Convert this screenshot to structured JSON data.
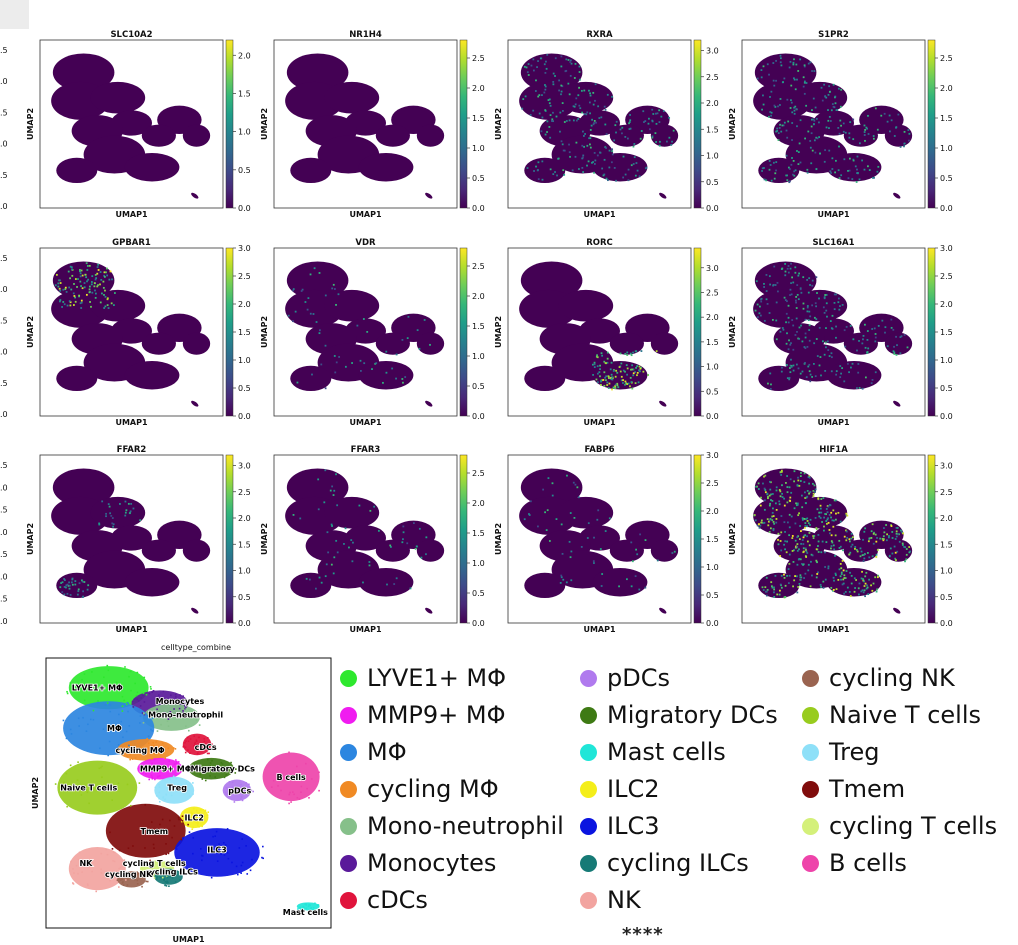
{
  "panels": [
    {
      "title": "SLC10A2",
      "ticks": [
        "2.0",
        "1.5",
        "1.0",
        "0.5",
        "0.0"
      ],
      "max": 2.2,
      "pattern": "none"
    },
    {
      "title": "NR1H4",
      "ticks": [
        "2.5",
        "2.0",
        "1.5",
        "1.0",
        "0.5",
        "0.0"
      ],
      "max": 2.8,
      "pattern": "none"
    },
    {
      "title": "RXRA",
      "ticks": [
        "3.0",
        "2.5",
        "2.0",
        "1.5",
        "1.0",
        "0.5",
        "0.0"
      ],
      "max": 3.2,
      "pattern": "medium"
    },
    {
      "title": "S1PR2",
      "ticks": [
        "2.5",
        "2.0",
        "1.5",
        "1.0",
        "0.5",
        "0.0"
      ],
      "max": 2.8,
      "pattern": "medium"
    },
    {
      "title": "GPBAR1",
      "ticks": [
        "3.0",
        "2.5",
        "2.0",
        "1.5",
        "1.0",
        "0.5",
        "0.0"
      ],
      "max": 3.0,
      "pattern": "topleft"
    },
    {
      "title": "VDR",
      "ticks": [
        "2.5",
        "2.0",
        "1.5",
        "1.0",
        "0.5",
        "0.0"
      ],
      "max": 2.8,
      "pattern": "sparse"
    },
    {
      "title": "RORC",
      "ticks": [
        "3.0",
        "2.5",
        "2.0",
        "1.5",
        "1.0",
        "0.5",
        "0.0"
      ],
      "max": 3.4,
      "pattern": "lowerright"
    },
    {
      "title": "SLC16A1",
      "ticks": [
        "3.0",
        "2.5",
        "2.0",
        "1.5",
        "1.0",
        "0.5",
        "0.0"
      ],
      "max": 3.0,
      "pattern": "medium"
    },
    {
      "title": "FFAR2",
      "ticks": [
        "3.0",
        "2.5",
        "2.0",
        "1.5",
        "1.0",
        "0.5",
        "0.0"
      ],
      "max": 3.2,
      "pattern": "lowerleft"
    },
    {
      "title": "FFAR3",
      "ticks": [
        "2.5",
        "2.0",
        "1.5",
        "1.0",
        "0.5",
        "0.0"
      ],
      "max": 2.8,
      "pattern": "sparse"
    },
    {
      "title": "FABP6",
      "ticks": [
        "3.0",
        "2.5",
        "2.0",
        "1.5",
        "1.0",
        "0.5",
        "0.0"
      ],
      "max": 3.0,
      "pattern": "sparse"
    },
    {
      "title": "HIF1A",
      "ticks": [
        "3.0",
        "2.5",
        "2.0",
        "1.5",
        "1.0",
        "0.5",
        "0.0"
      ],
      "max": 3.2,
      "pattern": "high"
    }
  ],
  "left_edge_ticks": [
    [
      ".5",
      ".0",
      ".5",
      ".0",
      ".5",
      ".0"
    ],
    [
      ".5",
      ".0",
      ".5",
      ".0",
      ".5",
      ".0"
    ],
    [
      ".5",
      ".0",
      ".5",
      ".0",
      ".5",
      ".0",
      ".5",
      ".0"
    ]
  ],
  "xlabel": "UMAP1",
  "ylabel": "UMAP2",
  "celltype": {
    "title": "celltype_combine",
    "xlabel": "UMAP1",
    "ylabel": "UMAP2",
    "cluster_labels": [
      "LYVE1+ MΦ",
      "Monocytes",
      "Mono-neutrophil",
      "MΦ",
      "cycling MΦ",
      "cDCs",
      "MMP9+ MΦ",
      "Migratory DCs",
      "B cells",
      "Naive T cells",
      "Treg",
      "pDCs",
      "ILC2",
      "Tmem",
      "ILC3",
      "NK",
      "cycling T cells",
      "cycling ILCs",
      "cycling NK",
      "Mast cells"
    ]
  },
  "legend": [
    {
      "label": "LYVE1+ MΦ",
      "color": "#2ee82e"
    },
    {
      "label": "MMP9+ MΦ",
      "color": "#f01cf0"
    },
    {
      "label": "MΦ",
      "color": "#2c86e0"
    },
    {
      "label": "cycling MΦ",
      "color": "#f08a24"
    },
    {
      "label": "Mono-neutrophil",
      "color": "#86c08a"
    },
    {
      "label": "Monocytes",
      "color": "#5a1a9a"
    },
    {
      "label": "cDCs",
      "color": "#e0143c"
    },
    {
      "label": "pDCs",
      "color": "#b07aee"
    },
    {
      "label": "Migratory DCs",
      "color": "#3e7a14"
    },
    {
      "label": "Mast cells",
      "color": "#20e6d8"
    },
    {
      "label": "ILC2",
      "color": "#f4ee1a"
    },
    {
      "label": "ILC3",
      "color": "#0a14e0"
    },
    {
      "label": "cycling ILCs",
      "color": "#167a76"
    },
    {
      "label": "NK",
      "color": "#f2a4a0"
    },
    {
      "label": "cycling NK",
      "color": "#9a6450"
    },
    {
      "label": "Naive T cells",
      "color": "#98cc1e"
    },
    {
      "label": "Treg",
      "color": "#8ee0f8"
    },
    {
      "label": "Tmem",
      "color": "#800c0c"
    },
    {
      "label": "cycling T cells",
      "color": "#d4f07a"
    },
    {
      "label": "B cells",
      "color": "#ee44aa"
    }
  ],
  "stars": "****",
  "chart_data": {
    "type": "scatter",
    "description_panels": [
      "SLC10A2",
      "NR1H4",
      "RXRA",
      "S1PR2",
      "GPBAR1",
      "VDR",
      "RORC",
      "SLC16A1",
      "FFAR2",
      "FFAR3",
      "FABP6",
      "HIF1A"
    ],
    "colorbar_ranges": [
      [
        0,
        2.2
      ],
      [
        0,
        2.8
      ],
      [
        0,
        3.2
      ],
      [
        0,
        2.8
      ],
      [
        0,
        3.0
      ],
      [
        0,
        2.8
      ],
      [
        0,
        3.4
      ],
      [
        0,
        3.0
      ],
      [
        0,
        3.2
      ],
      [
        0,
        2.8
      ],
      [
        0,
        3.0
      ],
      [
        0,
        3.2
      ]
    ],
    "xlabel": "UMAP1",
    "ylabel": "UMAP2"
  }
}
